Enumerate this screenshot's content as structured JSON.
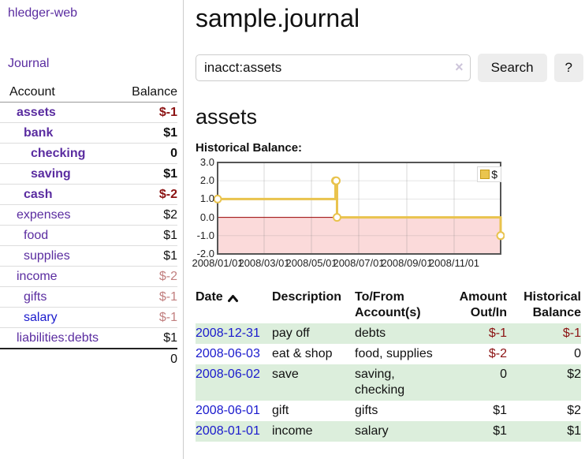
{
  "app": {
    "title": "hledger-web"
  },
  "palette": {
    "link_purple": "#5a2ca0",
    "link_blue": "#1a1acd",
    "negative_strong": "#8b1212",
    "negative_soft": "#c17f7f",
    "row_green": "#dceedc",
    "chart_line_gold": "#e9c34d",
    "negative_region_pink": "#fbdada",
    "zero_line_red": "#990000"
  },
  "sidebar": {
    "journal_link": "Journal",
    "table": {
      "account_header": "Account",
      "balance_header": "Balance",
      "rows": [
        {
          "account": "assets",
          "balance": "$-1"
        },
        {
          "account": "bank",
          "balance": "$1"
        },
        {
          "account": "checking",
          "balance": "0"
        },
        {
          "account": "saving",
          "balance": "$1"
        },
        {
          "account": "cash",
          "balance": "$-2"
        },
        {
          "account": "expenses",
          "balance": "$2"
        },
        {
          "account": "food",
          "balance": "$1"
        },
        {
          "account": "supplies",
          "balance": "$1"
        },
        {
          "account": "income",
          "balance": "$-2"
        },
        {
          "account": "gifts",
          "balance": "$-1"
        },
        {
          "account": "salary",
          "balance": "$-1"
        },
        {
          "account": "liabilities:debts",
          "balance": "$1"
        }
      ],
      "total": "0"
    }
  },
  "main": {
    "title": "sample.journal",
    "search": {
      "value": "inacct:assets",
      "clear_icon": "×",
      "button": "Search",
      "help_button": "?"
    },
    "account_heading": "assets",
    "chart_label": "Historical Balance:"
  },
  "chart_data": {
    "type": "line",
    "title": "Historical Balance:",
    "series": [
      {
        "name": "$",
        "color": "#e9c34d",
        "step": "after",
        "points": [
          [
            "2008-01-01",
            1
          ],
          [
            "2008-06-01",
            2
          ],
          [
            "2008-06-02",
            2
          ],
          [
            "2008-06-03",
            0
          ],
          [
            "2008-12-31",
            -1
          ]
        ]
      }
    ],
    "x_domain": [
      "2008-01-01",
      "2008-12-31"
    ],
    "x_ticks": [
      "2008/01/01",
      "2008/03/01",
      "2008/05/01",
      "2008/07/01",
      "2008/09/01",
      "2008/11/01"
    ],
    "y_ticks": [
      3,
      2,
      1,
      0,
      -1,
      -2
    ],
    "ylim": [
      -2,
      3
    ],
    "grid": true,
    "legend_position": "top-right",
    "negative_region_fill": "#fbdada",
    "zero_line_color": "#990000"
  },
  "register": {
    "headers": [
      "Date",
      "Description",
      "To/From Account(s)",
      "Amount Out/In",
      "Historical Balance"
    ],
    "rows": [
      {
        "date": "2008-12-31",
        "description": "pay off",
        "accounts": "debts",
        "amount": "$-1",
        "balance": "$-1"
      },
      {
        "date": "2008-06-03",
        "description": "eat & shop",
        "accounts": "food, supplies",
        "amount": "$-2",
        "balance": "0"
      },
      {
        "date": "2008-06-02",
        "description": "save",
        "accounts": "saving, checking",
        "amount": "0",
        "balance": "$2"
      },
      {
        "date": "2008-06-01",
        "description": "gift",
        "accounts": "gifts",
        "amount": "$1",
        "balance": "$2"
      },
      {
        "date": "2008-01-01",
        "description": "income",
        "accounts": "salary",
        "amount": "$1",
        "balance": "$1"
      }
    ]
  }
}
